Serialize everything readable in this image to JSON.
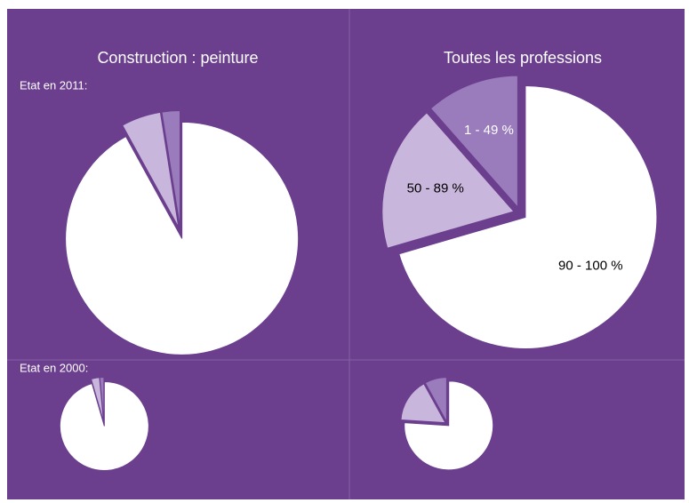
{
  "chart_data": [
    {
      "type": "pie",
      "title": "Construction : peinture",
      "subtitle": "Etat en 2011:",
      "values": [
        92,
        5.5,
        2.5
      ],
      "colors": [
        "#ffffff",
        "#c9b6dc",
        "#9a7cbc"
      ]
    },
    {
      "type": "pie",
      "title": "Toutes les professions",
      "categories": [
        "90 - 100 %",
        "50 - 89 %",
        "1 - 49 %"
      ],
      "values": [
        70.5,
        18,
        11.5
      ],
      "colors": [
        "#ffffff",
        "#c9b6dc",
        "#9a7cbc"
      ]
    },
    {
      "type": "pie",
      "subtitle": "Etat en 2000:",
      "values": [
        95.5,
        3,
        1.5
      ],
      "colors": [
        "#ffffff",
        "#c9b6dc",
        "#9a7cbc"
      ]
    },
    {
      "type": "pie",
      "values": [
        76,
        16,
        8
      ],
      "colors": [
        "#ffffff",
        "#c9b6dc",
        "#9a7cbc"
      ]
    }
  ]
}
